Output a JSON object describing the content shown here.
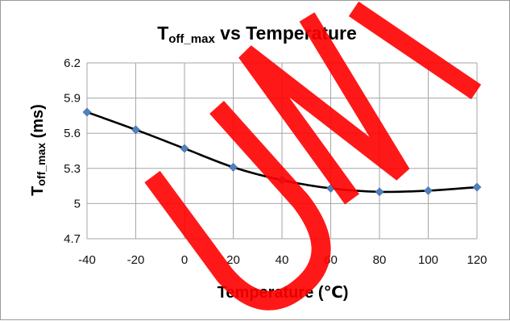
{
  "chart_data": {
    "type": "line",
    "title_main": "T",
    "title_sub": "off_max",
    "title_rest": " vs Temperature",
    "xlabel": "Temperature (℃)",
    "ylabel_main": "T",
    "ylabel_sub": "off_max",
    "ylabel_rest": " (ms)",
    "x": [
      -40,
      -20,
      0,
      20,
      40,
      60,
      80,
      100,
      120
    ],
    "y": [
      5.78,
      5.63,
      5.47,
      5.31,
      5.2,
      5.13,
      5.1,
      5.11,
      5.14
    ],
    "xlim": [
      -40,
      120
    ],
    "ylim": [
      4.7,
      6.2
    ],
    "xticks": [
      -40,
      -20,
      0,
      20,
      40,
      60,
      80,
      100,
      120
    ],
    "yticks": [
      "4.7",
      "5",
      "5.3",
      "5.6",
      "5.9",
      "6.2"
    ],
    "grid": true,
    "line_color": "#000000",
    "marker_color": "#4f81bd",
    "watermark": "UNI",
    "watermark_color": "#ff0000"
  }
}
